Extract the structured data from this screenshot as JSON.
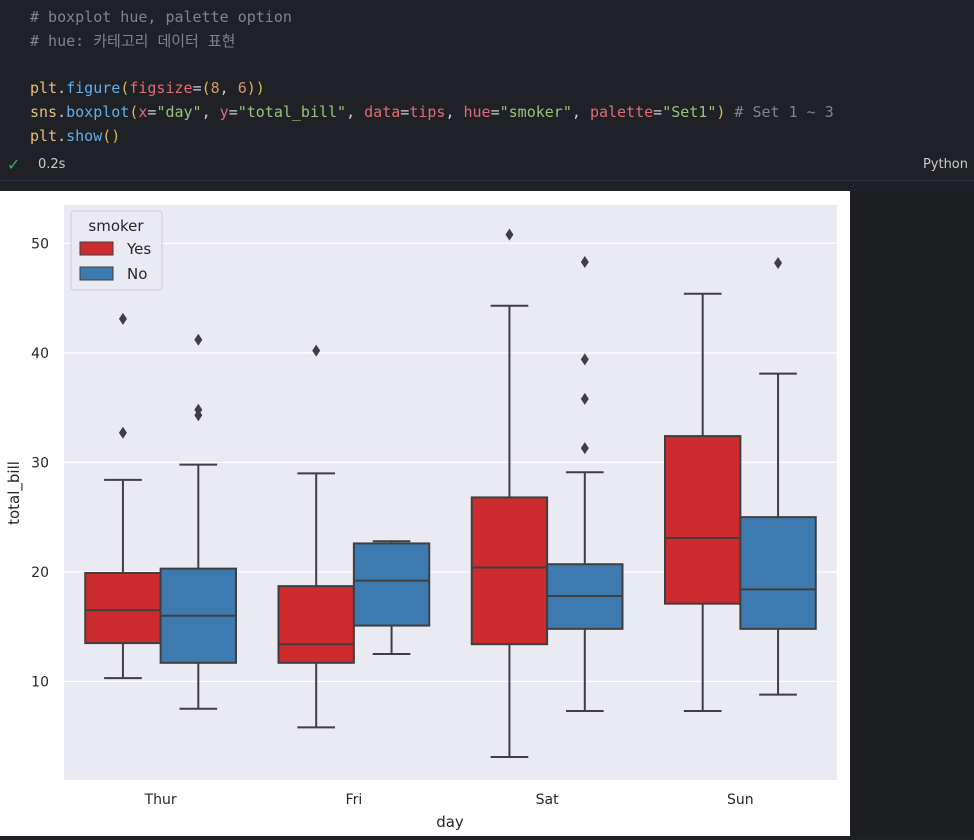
{
  "code": {
    "comment1": "# boxplot hue, palette option",
    "comment2": "# hue: 카테고리 데이터 표현",
    "line3": {
      "obj": "plt",
      "dot": ".",
      "fn": "figure",
      "open": "(",
      "param": "figsize",
      "eq": "=",
      "popen": "(",
      "n1": "8",
      "sep": ", ",
      "n2": "6",
      "pclose": ")",
      "close": ")"
    },
    "line4": {
      "obj": "sns",
      "dot": ".",
      "fn": "boxplot",
      "open": "(",
      "p1": "x",
      "eq1": "=",
      "v1": "\"day\"",
      "s1": ", ",
      "p2": "y",
      "eq2": "=",
      "v2": "\"total_bill\"",
      "s2": ", ",
      "p3": "data",
      "eq3": "=",
      "v3": "tips",
      "s3": ", ",
      "p4": "hue",
      "eq4": "=",
      "v4": "\"smoker\"",
      "s4": ", ",
      "p5": "palette",
      "eq5": "=",
      "v5": "\"Set1\"",
      "close": ")",
      "comment": " # Set 1 ~ 3"
    },
    "line5": {
      "obj": "plt",
      "dot": ".",
      "fn": "show",
      "parens": "()"
    }
  },
  "status": {
    "time": "0.2s",
    "language": "Python",
    "check_icon": "check-icon"
  },
  "colors": {
    "yes": "#d62728",
    "yes_actual": "#cd2b2e",
    "no": "#3d7ab0",
    "bg": "#eaeaf2"
  },
  "chart_data": {
    "type": "boxplot",
    "xlabel": "day",
    "ylabel": "total_bill",
    "categories": [
      "Thur",
      "Fri",
      "Sat",
      "Sun"
    ],
    "ylim": [
      1.0,
      53.5
    ],
    "yticks": [
      10,
      20,
      30,
      40,
      50
    ],
    "legend": {
      "title": "smoker",
      "placement": "top-left",
      "entries": [
        "Yes",
        "No"
      ]
    },
    "grid": true,
    "series": [
      {
        "name": "Yes",
        "color": "#cd2b2e",
        "boxes": [
          {
            "whislo": 10.3,
            "q1": 13.5,
            "med": 16.5,
            "q3": 19.9,
            "whishi": 28.4,
            "fliers": [
              32.7,
              43.1
            ]
          },
          {
            "whislo": 5.8,
            "q1": 11.7,
            "med": 13.4,
            "q3": 18.7,
            "whishi": 29.0,
            "fliers": [
              40.2
            ]
          },
          {
            "whislo": 3.1,
            "q1": 13.4,
            "med": 20.4,
            "q3": 26.8,
            "whishi": 44.3,
            "fliers": [
              50.8
            ]
          },
          {
            "whislo": 7.3,
            "q1": 17.1,
            "med": 23.1,
            "q3": 32.4,
            "whishi": 45.4,
            "fliers": []
          }
        ]
      },
      {
        "name": "No",
        "color": "#3d7ab0",
        "boxes": [
          {
            "whislo": 7.5,
            "q1": 11.7,
            "med": 16.0,
            "q3": 20.3,
            "whishi": 29.8,
            "fliers": [
              34.3,
              34.8,
              41.2
            ]
          },
          {
            "whislo": 12.5,
            "q1": 15.1,
            "med": 19.2,
            "q3": 22.6,
            "whishi": 22.8,
            "fliers": []
          },
          {
            "whislo": 7.3,
            "q1": 14.8,
            "med": 17.8,
            "q3": 20.7,
            "whishi": 29.1,
            "fliers": [
              31.3,
              35.8,
              39.4,
              48.3
            ]
          },
          {
            "whislo": 8.8,
            "q1": 14.8,
            "med": 18.4,
            "q3": 25.0,
            "whishi": 38.1,
            "fliers": [
              48.2
            ]
          }
        ]
      }
    ]
  }
}
